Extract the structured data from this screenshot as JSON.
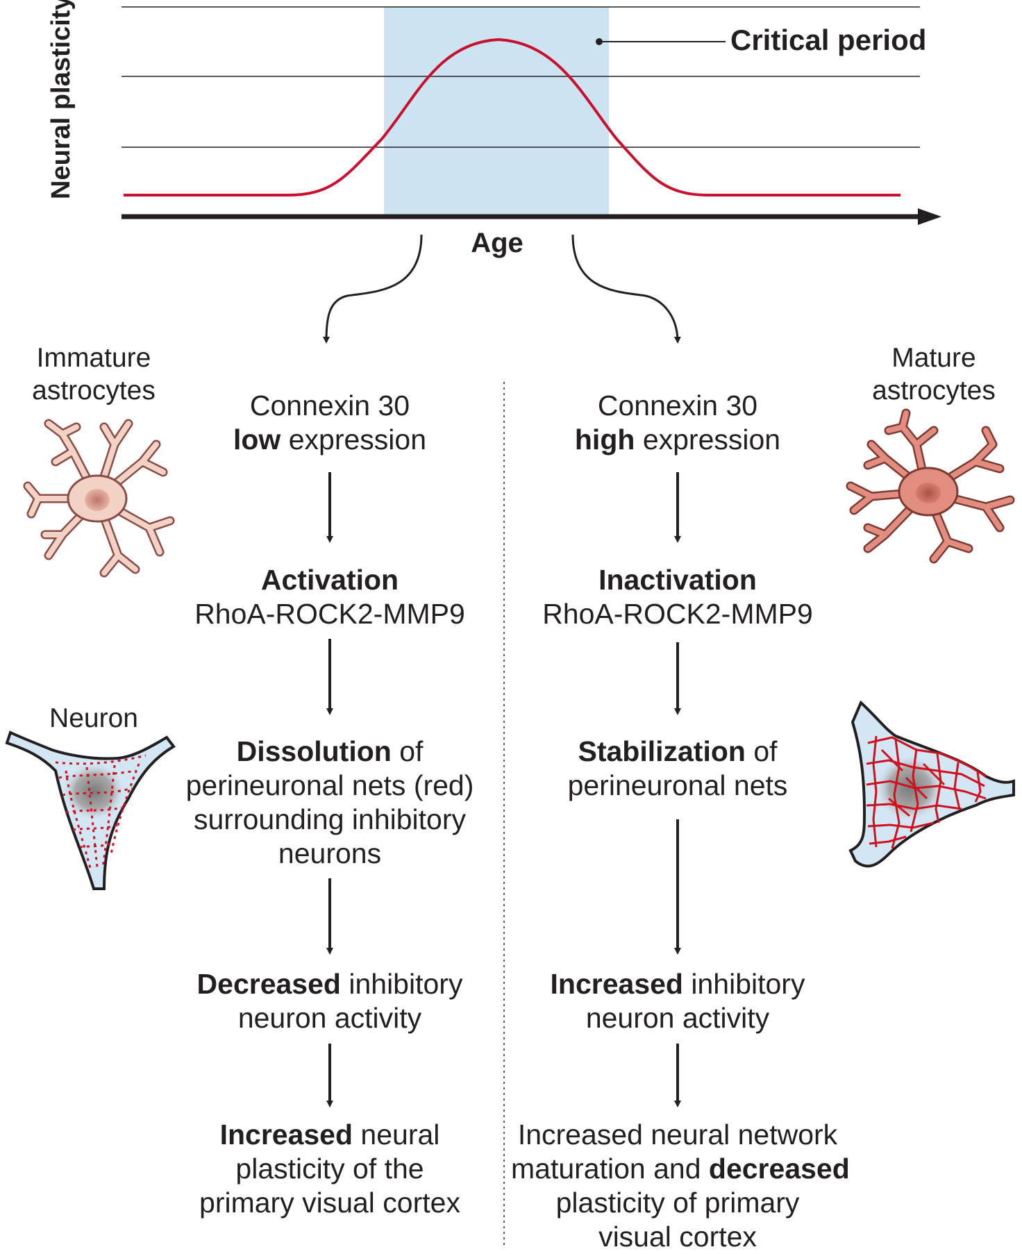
{
  "plot": {
    "y_axis_label": "Neural plasticity",
    "x_axis_label": "Age",
    "critical_period_label": "Critical period"
  },
  "colors": {
    "curve": "#c8102e",
    "critical_period_band": "#cce4f2",
    "text": "#231f20",
    "astro_immature": "#f3d2c6",
    "astro_mature": "#e38d80",
    "neuron_body": "#d3e6f3",
    "net": "#d0101e"
  },
  "left_column": {
    "cell_label": "Immature astrocytes",
    "neuron_label": "Neuron",
    "steps": [
      {
        "line1_bold": "",
        "line1": "Connexin 30",
        "line2_bold": "low",
        "line2": " expression"
      },
      {
        "bold": "Activation",
        "text": "RhoA-ROCK2-MMP9"
      },
      {
        "bold": "Dissolution",
        "text_after": " of",
        "line2": "perineuronal nets (red)",
        "line3": "surrounding inhibitory",
        "line4": "neurons"
      },
      {
        "bold": "Decreased",
        "text_after": " inhibitory",
        "line2": "neuron activity"
      },
      {
        "bold": "Increased",
        "text_after": " neural",
        "line2": "plasticity of the",
        "line3": "primary visual cortex"
      }
    ]
  },
  "right_column": {
    "cell_label": "Mature astrocytes",
    "steps": [
      {
        "line1": "Connexin 30",
        "line2_bold": "high",
        "line2": " expression"
      },
      {
        "bold": "Inactivation",
        "text": "RhoA-ROCK2-MMP9"
      },
      {
        "bold": "Stabilization",
        "text_after": " of",
        "line2": "perineuronal nets"
      },
      {
        "bold": "Increased",
        "text_after": " inhibitory",
        "line2": "neuron activity"
      },
      {
        "line1": "Increased neural network",
        "line2_pre": "maturation and ",
        "line2_bold": "decreased",
        "line3": "plasticity of primary",
        "line4": "visual cortex"
      }
    ]
  }
}
